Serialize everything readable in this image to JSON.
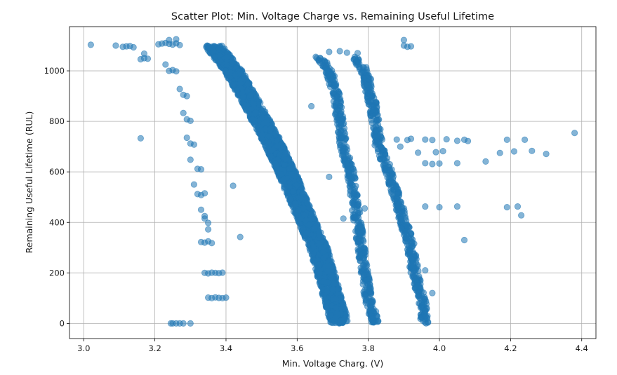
{
  "chart_data": {
    "type": "scatter",
    "title": "Scatter Plot: Min. Voltage Charge vs. Remaining Useful Lifetime",
    "xlabel": "Min. Voltage Charg. (V)",
    "ylabel": "Remaining Useful Lifetime (RUL)",
    "xlim": [
      2.96,
      4.44
    ],
    "ylim": [
      -60,
      1175
    ],
    "xticks": [
      3.0,
      3.2,
      3.4,
      3.6,
      3.8,
      4.0,
      4.2,
      4.4
    ],
    "xtick_labels": [
      "3.0",
      "3.2",
      "3.4",
      "3.6",
      "3.8",
      "4.0",
      "4.2",
      "4.4"
    ],
    "yticks": [
      0,
      200,
      400,
      600,
      800,
      1000
    ],
    "ytick_labels": [
      "0",
      "200",
      "400",
      "600",
      "800",
      "1000"
    ],
    "grid": true,
    "marker_color": "#1f77b4",
    "marker_alpha": 0.55,
    "series": [
      {
        "points": [
          [
            3.02,
            1103
          ],
          [
            3.09,
            1100
          ],
          [
            3.11,
            1095
          ],
          [
            3.12,
            1097
          ],
          [
            3.13,
            1098
          ],
          [
            3.14,
            1093
          ],
          [
            3.16,
            1046
          ],
          [
            3.17,
            1050
          ],
          [
            3.18,
            1048
          ],
          [
            3.17,
            1068
          ],
          [
            3.16,
            733
          ],
          [
            3.21,
            1105
          ],
          [
            3.22,
            1108
          ],
          [
            3.23,
            1110
          ],
          [
            3.24,
            1107
          ],
          [
            3.25,
            1104
          ],
          [
            3.26,
            1109
          ],
          [
            3.27,
            1102
          ],
          [
            3.24,
            1122
          ],
          [
            3.26,
            1125
          ],
          [
            3.23,
            1025
          ],
          [
            3.24,
            1000
          ],
          [
            3.25,
            1003
          ],
          [
            3.26,
            998
          ],
          [
            3.27,
            928
          ],
          [
            3.28,
            905
          ],
          [
            3.29,
            900
          ],
          [
            3.28,
            833
          ],
          [
            3.29,
            808
          ],
          [
            3.3,
            802
          ],
          [
            3.29,
            735
          ],
          [
            3.3,
            712
          ],
          [
            3.31,
            708
          ],
          [
            3.3,
            648
          ],
          [
            3.32,
            612
          ],
          [
            3.33,
            610
          ],
          [
            3.31,
            550
          ],
          [
            3.32,
            512
          ],
          [
            3.33,
            508
          ],
          [
            3.34,
            515
          ],
          [
            3.33,
            450
          ],
          [
            3.34,
            425
          ],
          [
            3.34,
            415
          ],
          [
            3.35,
            398
          ],
          [
            3.35,
            372
          ],
          [
            3.33,
            322
          ],
          [
            3.34,
            320
          ],
          [
            3.35,
            325
          ],
          [
            3.36,
            318
          ],
          [
            3.34,
            200
          ],
          [
            3.35,
            198
          ],
          [
            3.36,
            201
          ],
          [
            3.37,
            200
          ],
          [
            3.38,
            199
          ],
          [
            3.39,
            201
          ],
          [
            3.35,
            102
          ],
          [
            3.36,
            100
          ],
          [
            3.37,
            103
          ],
          [
            3.38,
            101
          ],
          [
            3.39,
            100
          ],
          [
            3.4,
            102
          ],
          [
            3.245,
            0
          ],
          [
            3.25,
            0
          ],
          [
            3.26,
            0
          ],
          [
            3.27,
            0
          ],
          [
            3.28,
            0
          ],
          [
            3.3,
            0
          ],
          [
            3.42,
            545
          ],
          [
            3.44,
            342
          ],
          [
            3.69,
            1075
          ],
          [
            3.72,
            1078
          ],
          [
            3.74,
            1072
          ],
          [
            3.77,
            1070
          ],
          [
            3.64,
            860
          ],
          [
            3.69,
            580
          ],
          [
            3.73,
            415
          ],
          [
            3.79,
            455
          ],
          [
            3.9,
            1122
          ],
          [
            3.9,
            1100
          ],
          [
            3.91,
            1095
          ],
          [
            3.92,
            1097
          ],
          [
            3.88,
            728
          ],
          [
            3.89,
            700
          ],
          [
            3.91,
            726
          ],
          [
            3.92,
            731
          ],
          [
            3.94,
            676
          ],
          [
            3.96,
            728
          ],
          [
            3.98,
            726
          ],
          [
            3.96,
            634
          ],
          [
            3.98,
            631
          ],
          [
            3.99,
            678
          ],
          [
            4.0,
            633
          ],
          [
            4.01,
            682
          ],
          [
            4.02,
            729
          ],
          [
            4.05,
            723
          ],
          [
            4.07,
            727
          ],
          [
            4.08,
            722
          ],
          [
            4.05,
            634
          ],
          [
            4.13,
            641
          ],
          [
            4.17,
            675
          ],
          [
            4.19,
            727
          ],
          [
            4.21,
            681
          ],
          [
            4.24,
            727
          ],
          [
            4.26,
            683
          ],
          [
            4.3,
            671
          ],
          [
            4.38,
            754
          ],
          [
            3.96,
            463
          ],
          [
            4.0,
            460
          ],
          [
            4.05,
            463
          ],
          [
            4.19,
            460
          ],
          [
            4.22,
            463
          ],
          [
            4.23,
            428
          ],
          [
            4.07,
            330
          ],
          [
            3.96,
            210
          ],
          [
            3.98,
            120
          ]
        ]
      }
    ],
    "bands": [
      {
        "polyline": [
          [
            3.365,
            1100
          ],
          [
            3.42,
            1000
          ],
          [
            3.48,
            850
          ],
          [
            3.53,
            720
          ],
          [
            3.57,
            600
          ],
          [
            3.62,
            430
          ],
          [
            3.66,
            300
          ],
          [
            3.69,
            150
          ],
          [
            3.72,
            0
          ]
        ],
        "halfwidth_x": 0.026,
        "density": 2600
      },
      {
        "polyline": [
          [
            3.66,
            1060
          ],
          [
            3.69,
            1000
          ],
          [
            3.71,
            900
          ],
          [
            3.72,
            800
          ],
          [
            3.73,
            700
          ],
          [
            3.75,
            600
          ],
          [
            3.76,
            500
          ],
          [
            3.77,
            400
          ],
          [
            3.78,
            300
          ],
          [
            3.79,
            200
          ],
          [
            3.8,
            100
          ],
          [
            3.82,
            0
          ]
        ],
        "halfwidth_x": 0.011,
        "density": 520
      },
      {
        "polyline": [
          [
            3.76,
            1060
          ],
          [
            3.79,
            1000
          ],
          [
            3.81,
            880
          ],
          [
            3.82,
            800
          ],
          [
            3.83,
            700
          ],
          [
            3.86,
            600
          ],
          [
            3.88,
            500
          ],
          [
            3.9,
            400
          ],
          [
            3.92,
            300
          ],
          [
            3.93,
            200
          ],
          [
            3.95,
            100
          ],
          [
            3.96,
            0
          ]
        ],
        "halfwidth_x": 0.012,
        "density": 560
      }
    ]
  }
}
